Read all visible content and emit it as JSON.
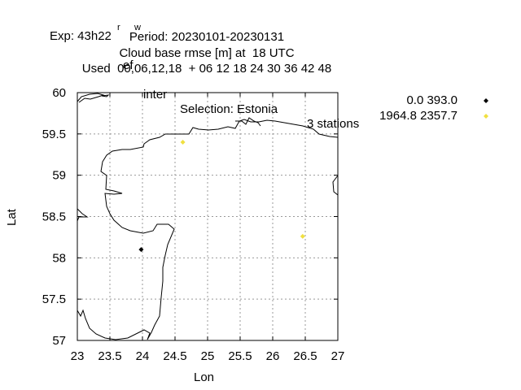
{
  "title": {
    "line1_exp": "Exp: 43h22",
    "line1_sub1": "r",
    "line1_ef": "ef",
    "line1_sub2": "w",
    "line1_inter": "inter",
    "line1_selection": "Selection: Estonia",
    "line1_stations": "3 stations",
    "line2": "Period: 20230101-20230131",
    "line3": "Cloud base rmse [m] at  18 UTC",
    "line4": "Used  00,06,12,18  + 06 12 18 24 30 36 42 48"
  },
  "chart_data": {
    "type": "scatter",
    "xlabel": "Lon",
    "ylabel": "Lat",
    "xlim": [
      23,
      27
    ],
    "ylim": [
      57,
      60
    ],
    "xticks": [
      23,
      23.5,
      24,
      24.5,
      25,
      25.5,
      26,
      26.5,
      27
    ],
    "xtick_labels": [
      "23",
      "23.5",
      "24",
      "24.5",
      "25",
      "25.5",
      "26",
      "26.5",
      "27"
    ],
    "yticks": [
      57,
      57.5,
      58,
      58.5,
      59,
      59.5,
      60
    ],
    "ytick_labels": [
      "57",
      "57.5",
      "58",
      "58.5",
      "59",
      "59.5",
      "60"
    ],
    "grid": true,
    "legend_position": "outside-right-top",
    "series": [
      {
        "name": "0.0 393.0",
        "color": "#000000",
        "points": [
          [
            23.98,
            58.1
          ]
        ]
      },
      {
        "name": "1964.8 2357.7",
        "color": "#f0e040",
        "points": [
          [
            24.62,
            59.4
          ],
          [
            26.46,
            58.26
          ]
        ]
      }
    ],
    "coastline_color": "#000000"
  }
}
